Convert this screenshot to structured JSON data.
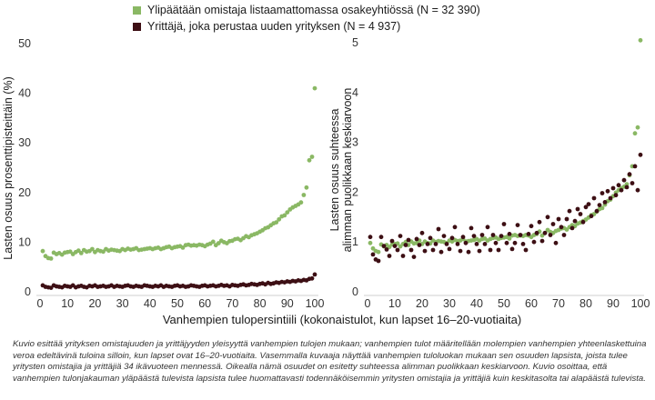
{
  "colors": {
    "green": "#8ab864",
    "maroon": "#3d0f14",
    "axis": "#555555"
  },
  "legend": {
    "green_label": "Ylipäätään omistaja listaamattomassa osakeyhtiössä (N = 32 390)",
    "maroon_label": "Yrittäjä, joka perustaa uuden yrityksen (N = 4 937)"
  },
  "x_axis_label": "Vanhempien tulopersintiili (kokonaistulot, kun lapset 16–20-vuotiaita)",
  "caption": "Kuvio esittää yrityksen omistajuuden ja yrittäjyyden yleisyyttä vanhempien tulojen mukaan; vanhempien tulot määritellään molempien vanhempien yhteenlaskettuina veroa edeltävinä tuloina silloin, kun lapset ovat 16–20-vuotiaita. Vasemmalla kuvaaja näyttää vanhempien tuloluokan mukaan sen osuuden lapsista, joista tulee yritysten omistajia ja yrittäjiä 34 ikävuoteen mennessä. Oikealla nämä osuudet on esitetty suhteessa alimman puolikkaan keskiarvoon. Kuvio osoittaa, että vanhempien tulonjakauman yläpäästä tulevista lapsista tulee huomattavasti todennäköisemmin yritysten omistajia ja yrittäjiä kuin keskitasolta tai alapäästä tulevista.",
  "chart_data": [
    {
      "type": "scatter",
      "title": "",
      "xlabel": "Vanhempien tulopersintiili (kokonaistulot, kun lapset 16–20-vuotiaita)",
      "ylabel": "Lasten osuus prosenttipisteittäin (%)",
      "xlim": [
        0,
        100
      ],
      "ylim": [
        0,
        50
      ],
      "xticks": [
        "0",
        "10",
        "20",
        "30",
        "40",
        "50",
        "60",
        "70",
        "80",
        "90",
        "100"
      ],
      "yticks": [
        "0",
        "10",
        "20",
        "30",
        "40",
        "50"
      ],
      "series": [
        {
          "name": "Ylipäätään omistaja listaamattomassa osakeyhtiössä (N = 32 390)",
          "color": "#8ab864",
          "x": [
            1,
            2,
            3,
            4,
            5,
            6,
            7,
            8,
            9,
            10,
            11,
            12,
            13,
            14,
            15,
            16,
            17,
            18,
            19,
            20,
            21,
            22,
            23,
            24,
            25,
            26,
            27,
            28,
            29,
            30,
            31,
            32,
            33,
            34,
            35,
            36,
            37,
            38,
            39,
            40,
            41,
            42,
            43,
            44,
            45,
            46,
            47,
            48,
            49,
            50,
            51,
            52,
            53,
            54,
            55,
            56,
            57,
            58,
            59,
            60,
            61,
            62,
            63,
            64,
            65,
            66,
            67,
            68,
            69,
            70,
            71,
            72,
            73,
            74,
            75,
            76,
            77,
            78,
            79,
            80,
            81,
            82,
            83,
            84,
            85,
            86,
            87,
            88,
            89,
            90,
            91,
            92,
            93,
            94,
            95,
            96,
            97,
            98,
            99,
            100
          ],
          "y": [
            8.2,
            7.2,
            6.8,
            6.7,
            7.9,
            7.6,
            7.8,
            7.5,
            7.9,
            8.0,
            8.1,
            7.6,
            8.0,
            8.3,
            7.8,
            8.4,
            8.1,
            8.2,
            8.6,
            8.0,
            8.4,
            8.2,
            8.1,
            8.6,
            8.3,
            8.5,
            8.4,
            8.3,
            8.2,
            8.6,
            8.4,
            8.7,
            8.5,
            8.6,
            8.8,
            8.4,
            8.5,
            8.6,
            8.7,
            8.8,
            8.6,
            8.8,
            8.9,
            8.6,
            8.8,
            9.0,
            9.1,
            8.8,
            9.0,
            9.1,
            9.2,
            8.9,
            9.4,
            9.5,
            9.3,
            9.4,
            9.3,
            9.5,
            9.4,
            9.2,
            9.5,
            9.7,
            10.1,
            9.4,
            9.8,
            10.3,
            10.0,
            9.8,
            10.2,
            10.3,
            10.6,
            10.7,
            10.4,
            10.8,
            11.2,
            11.0,
            11.4,
            11.6,
            11.8,
            12.1,
            12.4,
            12.8,
            13.0,
            13.4,
            13.8,
            14.0,
            14.6,
            15.2,
            15.4,
            16.0,
            16.6,
            17.0,
            17.3,
            17.6,
            18.0,
            19.5,
            21.0,
            26.5,
            27.2,
            41.0
          ]
        },
        {
          "name": "Yrittäjä, joka perustaa uuden yrityksen (N = 4 937)",
          "color": "#3d0f14",
          "x": [
            1,
            2,
            3,
            4,
            5,
            6,
            7,
            8,
            9,
            10,
            11,
            12,
            13,
            14,
            15,
            16,
            17,
            18,
            19,
            20,
            21,
            22,
            23,
            24,
            25,
            26,
            27,
            28,
            29,
            30,
            31,
            32,
            33,
            34,
            35,
            36,
            37,
            38,
            39,
            40,
            41,
            42,
            43,
            44,
            45,
            46,
            47,
            48,
            49,
            50,
            51,
            52,
            53,
            54,
            55,
            56,
            57,
            58,
            59,
            60,
            61,
            62,
            63,
            64,
            65,
            66,
            67,
            68,
            69,
            70,
            71,
            72,
            73,
            74,
            75,
            76,
            77,
            78,
            79,
            80,
            81,
            82,
            83,
            84,
            85,
            86,
            87,
            88,
            89,
            90,
            91,
            92,
            93,
            94,
            95,
            96,
            97,
            98,
            99,
            100
          ],
          "y": [
            1.3,
            1.0,
            0.9,
            0.8,
            1.3,
            1.1,
            1.0,
            0.9,
            1.2,
            1.1,
            1.0,
            1.3,
            0.9,
            1.1,
            1.2,
            1.0,
            0.9,
            1.2,
            1.1,
            1.3,
            1.0,
            1.1,
            1.2,
            1.0,
            1.1,
            1.3,
            1.0,
            1.2,
            1.1,
            1.0,
            1.2,
            1.3,
            1.1,
            1.0,
            1.2,
            1.1,
            1.0,
            1.3,
            1.2,
            1.1,
            1.0,
            1.2,
            1.1,
            1.3,
            1.0,
            1.2,
            1.1,
            1.0,
            1.2,
            1.3,
            1.1,
            1.2,
            1.0,
            1.1,
            1.3,
            1.2,
            1.1,
            1.0,
            1.2,
            1.3,
            1.1,
            1.2,
            1.3,
            1.1,
            1.2,
            1.4,
            1.2,
            1.3,
            1.1,
            1.4,
            1.3,
            1.2,
            1.4,
            1.5,
            1.3,
            1.4,
            1.6,
            1.5,
            1.4,
            1.6,
            1.7,
            1.5,
            1.8,
            1.6,
            1.7,
            1.9,
            1.8,
            2.0,
            1.9,
            2.1,
            2.0,
            2.2,
            2.1,
            2.3,
            2.2,
            2.4,
            2.3,
            2.6,
            2.7,
            3.5
          ]
        }
      ]
    },
    {
      "type": "scatter",
      "title": "",
      "xlabel": "Vanhempien tulopersintiili (kokonaistulot, kun lapset 16–20-vuotiaita)",
      "ylabel_line1": "Lasten osuus suhteessa",
      "ylabel_line2": "alimman puolikkaan keskiarvoon",
      "xlim": [
        0,
        100
      ],
      "ylim": [
        0,
        5
      ],
      "xticks": [
        "0",
        "10",
        "20",
        "30",
        "40",
        "50",
        "60",
        "70",
        "80",
        "90",
        "100"
      ],
      "yticks": [
        "0",
        "1",
        "2",
        "3",
        "4",
        "5"
      ],
      "series": [
        {
          "name": "Ylipäätään omistaja listaamattomassa osakeyhtiössä (N = 32 390)",
          "color": "#8ab864",
          "x": [
            1,
            2,
            3,
            4,
            5,
            6,
            7,
            8,
            9,
            10,
            11,
            12,
            13,
            14,
            15,
            16,
            17,
            18,
            19,
            20,
            21,
            22,
            23,
            24,
            25,
            26,
            27,
            28,
            29,
            30,
            31,
            32,
            33,
            34,
            35,
            36,
            37,
            38,
            39,
            40,
            41,
            42,
            43,
            44,
            45,
            46,
            47,
            48,
            49,
            50,
            51,
            52,
            53,
            54,
            55,
            56,
            57,
            58,
            59,
            60,
            61,
            62,
            63,
            64,
            65,
            66,
            67,
            68,
            69,
            70,
            71,
            72,
            73,
            74,
            75,
            76,
            77,
            78,
            79,
            80,
            81,
            82,
            83,
            84,
            85,
            86,
            87,
            88,
            89,
            90,
            91,
            92,
            93,
            94,
            95,
            96,
            97,
            98,
            99,
            100
          ],
          "y": [
            0.98,
            0.87,
            0.82,
            0.8,
            0.95,
            0.91,
            0.94,
            0.9,
            0.95,
            0.96,
            0.97,
            0.91,
            0.96,
            1.0,
            0.94,
            1.01,
            0.97,
            0.98,
            1.03,
            0.96,
            1.01,
            0.98,
            0.97,
            1.03,
            1.0,
            1.02,
            1.01,
            1.0,
            0.98,
            1.03,
            1.01,
            1.04,
            1.02,
            1.03,
            1.06,
            1.01,
            1.02,
            1.03,
            1.04,
            1.06,
            1.03,
            1.06,
            1.07,
            1.03,
            1.06,
            1.08,
            1.09,
            1.06,
            1.08,
            1.09,
            1.1,
            1.07,
            1.13,
            1.14,
            1.12,
            1.13,
            1.12,
            1.14,
            1.13,
            1.1,
            1.14,
            1.16,
            1.21,
            1.13,
            1.18,
            1.24,
            1.2,
            1.18,
            1.22,
            1.24,
            1.27,
            1.28,
            1.25,
            1.3,
            1.34,
            1.32,
            1.37,
            1.39,
            1.42,
            1.45,
            1.49,
            1.54,
            1.56,
            1.61,
            1.66,
            1.68,
            1.75,
            1.82,
            1.85,
            1.92,
            1.99,
            2.04,
            2.08,
            2.11,
            2.16,
            2.34,
            2.52,
            3.18,
            3.3,
            5.05
          ]
        },
        {
          "name": "Yrittäjä, joka perustaa uuden yrityksen (N = 4 937)",
          "color": "#3d0f14",
          "x": [
            1,
            2,
            3,
            4,
            5,
            6,
            7,
            8,
            9,
            10,
            11,
            12,
            13,
            14,
            15,
            16,
            17,
            18,
            19,
            20,
            21,
            22,
            23,
            24,
            25,
            26,
            27,
            28,
            29,
            30,
            31,
            32,
            33,
            34,
            35,
            36,
            37,
            38,
            39,
            40,
            41,
            42,
            43,
            44,
            45,
            46,
            47,
            48,
            49,
            50,
            51,
            52,
            53,
            54,
            55,
            56,
            57,
            58,
            59,
            60,
            61,
            62,
            63,
            64,
            65,
            66,
            67,
            68,
            69,
            70,
            71,
            72,
            73,
            74,
            75,
            76,
            77,
            78,
            79,
            80,
            81,
            82,
            83,
            84,
            85,
            86,
            87,
            88,
            89,
            90,
            91,
            92,
            93,
            94,
            95,
            96,
            97,
            98,
            99,
            100
          ],
          "y": [
            1.1,
            0.75,
            0.65,
            0.62,
            1.1,
            0.92,
            0.85,
            0.72,
            1.02,
            0.92,
            0.84,
            1.12,
            0.72,
            0.94,
            1.04,
            0.84,
            0.7,
            1.06,
            0.94,
            1.18,
            0.82,
            0.96,
            1.08,
            0.84,
            0.96,
            1.26,
            0.8,
            1.12,
            0.96,
            0.86,
            1.08,
            1.3,
            0.96,
            0.82,
            1.1,
            0.98,
            0.8,
            1.28,
            1.12,
            0.96,
            0.82,
            1.14,
            0.96,
            1.3,
            0.84,
            1.14,
            0.98,
            0.84,
            1.12,
            1.36,
            0.98,
            1.16,
            0.86,
            0.98,
            1.34,
            1.14,
            0.96,
            0.84,
            1.16,
            1.32,
            1.0,
            1.18,
            1.4,
            1.02,
            1.18,
            1.5,
            1.14,
            1.36,
            0.98,
            1.46,
            1.3,
            1.14,
            1.46,
            1.62,
            1.28,
            1.42,
            1.66,
            1.56,
            1.4,
            1.7,
            1.76,
            1.52,
            1.88,
            1.62,
            1.74,
            1.98,
            1.8,
            2.02,
            1.88,
            2.08,
            1.94,
            2.14,
            2.04,
            2.24,
            2.1,
            2.36,
            2.18,
            2.52,
            2.04,
            2.75
          ]
        }
      ]
    }
  ]
}
